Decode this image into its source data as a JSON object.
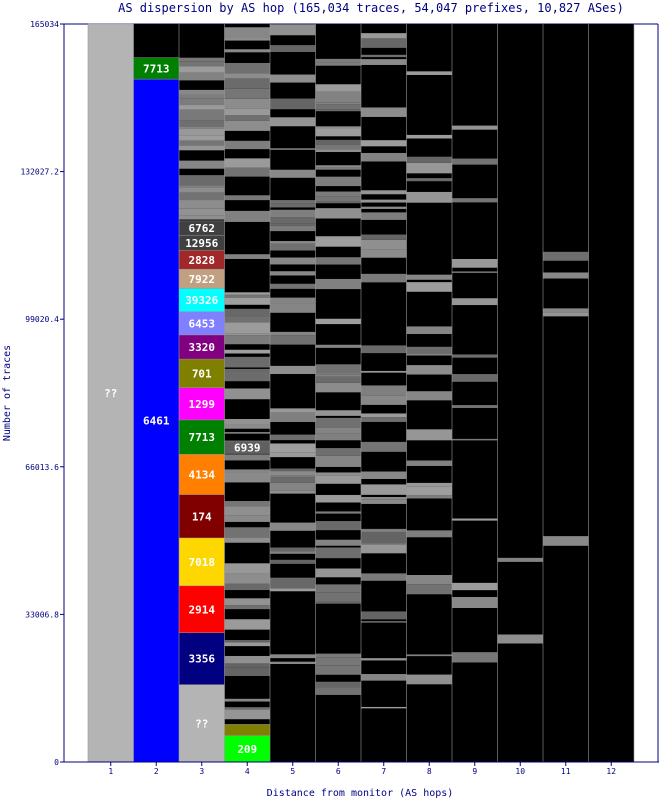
{
  "chart_data": {
    "type": "bar",
    "title": "AS dispersion by AS hop (165,034 traces, 54,047 prefixes, 10,827 ASes)",
    "xlabel": "Distance from monitor (AS hops)",
    "ylabel": "Number of traces",
    "ylim": [
      0,
      165034
    ],
    "y_ticks": [
      "0",
      "33006.8",
      "66013.6",
      "99020.4",
      "132027.2",
      "165034"
    ],
    "categories": [
      "1",
      "2",
      "3",
      "4",
      "5",
      "6",
      "7",
      "8",
      "9",
      "10",
      "11",
      "12"
    ],
    "hop_coverage": [
      165034,
      165034,
      165034,
      165034,
      165034,
      165034,
      165034,
      165034,
      165034,
      165034,
      165034,
      165034
    ],
    "labeled_segments": [
      {
        "hop": 1,
        "as": "??",
        "from": 0,
        "to": 165034,
        "color": "#b4b4b4"
      },
      {
        "hop": 2,
        "as": "6461",
        "from": 0,
        "to": 152700,
        "color": "#0000ff"
      },
      {
        "hop": 2,
        "as": "7713",
        "from": 152700,
        "to": 157500,
        "color": "#008000"
      },
      {
        "hop": 3,
        "as": "??",
        "from": 0,
        "to": 17300,
        "color": "#b4b4b4"
      },
      {
        "hop": 3,
        "as": "3356",
        "from": 17300,
        "to": 28900,
        "color": "#000080"
      },
      {
        "hop": 3,
        "as": "2914",
        "from": 28900,
        "to": 39400,
        "color": "#ff0000"
      },
      {
        "hop": 3,
        "as": "7018",
        "from": 39400,
        "to": 50100,
        "color": "#ffd700"
      },
      {
        "hop": 3,
        "as": "174",
        "from": 50100,
        "to": 59800,
        "color": "#800000"
      },
      {
        "hop": 3,
        "as": "4134",
        "from": 59800,
        "to": 68800,
        "color": "#ff8000"
      },
      {
        "hop": 3,
        "as": "7713",
        "from": 68800,
        "to": 76500,
        "color": "#008000"
      },
      {
        "hop": 3,
        "as": "1299",
        "from": 76500,
        "to": 83700,
        "color": "#ff00ff"
      },
      {
        "hop": 3,
        "as": "701",
        "from": 83700,
        "to": 90100,
        "color": "#808000"
      },
      {
        "hop": 3,
        "as": "3320",
        "from": 90100,
        "to": 95500,
        "color": "#800080"
      },
      {
        "hop": 3,
        "as": "6453",
        "from": 95500,
        "to": 100700,
        "color": "#8080ff"
      },
      {
        "hop": 3,
        "as": "39326",
        "from": 100700,
        "to": 105900,
        "color": "#00ffff"
      },
      {
        "hop": 3,
        "as": "7922",
        "from": 105900,
        "to": 110200,
        "color": "#c0a080"
      },
      {
        "hop": 3,
        "as": "2828",
        "from": 110200,
        "to": 114400,
        "color": "#a02828"
      },
      {
        "hop": 3,
        "as": "12956",
        "from": 114400,
        "to": 117800,
        "color": "#404040"
      },
      {
        "hop": 3,
        "as": "6762",
        "from": 117800,
        "to": 121000,
        "color": "#404040"
      },
      {
        "hop": 4,
        "as": "6939",
        "from": 68900,
        "to": 71800,
        "color": "#606060"
      },
      {
        "hop": 4,
        "as": "209",
        "from": 0,
        "to": 5900,
        "color": "#00ff00"
      },
      {
        "hop": 4,
        "as": "",
        "from": 5900,
        "to": 8400,
        "color": "#808000"
      }
    ],
    "grid": true,
    "legend": "none"
  }
}
